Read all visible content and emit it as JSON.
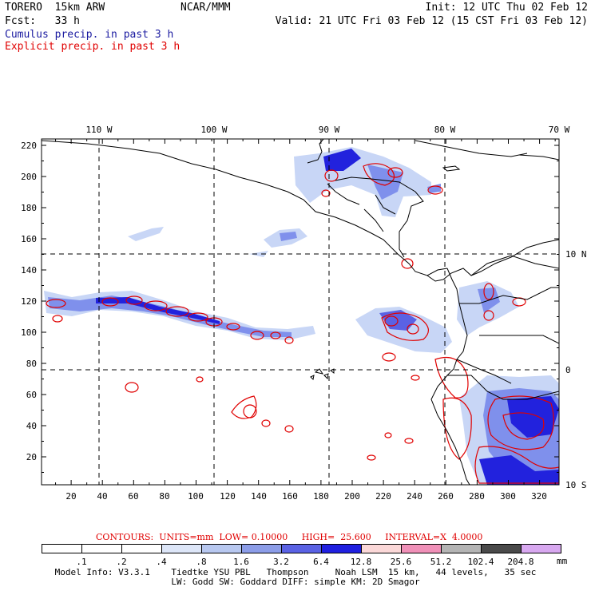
{
  "header": {
    "model": "TORERO  15km ARW",
    "org": "NCAR/MMM",
    "init": "Init: 12 UTC Thu 02 Feb 12",
    "fcst": "Fcst:   33 h",
    "valid": "Valid: 21 UTC Fri 03 Feb 12 (15 CST Fri 03 Feb 12)",
    "cumulus_label": "Cumulus precip. in past 3 h",
    "explicit_label": "Explicit precip. in past 3 h"
  },
  "axes": {
    "top_ticks": [
      "110 W",
      "100 W",
      "90 W",
      "80 W",
      "70 W"
    ],
    "right_ticks": [
      "10 N",
      "0",
      "10 S"
    ],
    "left_ticks": [
      "220",
      "200",
      "180",
      "160",
      "140",
      "120",
      "100",
      "80",
      "60",
      "40",
      "20"
    ],
    "bottom_ticks": [
      "20",
      "40",
      "60",
      "80",
      "100",
      "120",
      "140",
      "160",
      "180",
      "200",
      "220",
      "240",
      "260",
      "280",
      "300",
      "320"
    ]
  },
  "contours_line": "CONTOURS:  UNITS=mm  LOW= 0.10000     HIGH=  25.600     INTERVAL=X  4.0000",
  "colorbar": {
    "units": "mm",
    "labels": [
      ".1",
      ".2",
      ".4",
      ".8",
      "1.6",
      "3.2",
      "6.4",
      "12.8",
      "25.6",
      "51.2",
      "102.4",
      "204.8"
    ],
    "colors": [
      "#ffffff",
      "#ffffff",
      "#ffffff",
      "#dde6f8",
      "#b8c8f0",
      "#8c9de8",
      "#5a62e4",
      "#2020e0",
      "#fbd8d8",
      "#f090b8",
      "#b4b4b4",
      "#4a4a4a",
      "#d8a8f0"
    ]
  },
  "model_info": {
    "line1": "Model Info: V3.3.1    Tiedtke YSU PBL   Thompson     Noah LSM  15 km,   44 levels,   35 sec",
    "line2": "LW: Godd SW: Goddard DIFF: simple KM: 2D Smagor"
  },
  "colors": {
    "cumulus_light": "#c8d6f6",
    "cumulus_mid": "#7f90ec",
    "cumulus_dark": "#2222dd",
    "explicit": "#e00000",
    "coast": "#000000"
  }
}
